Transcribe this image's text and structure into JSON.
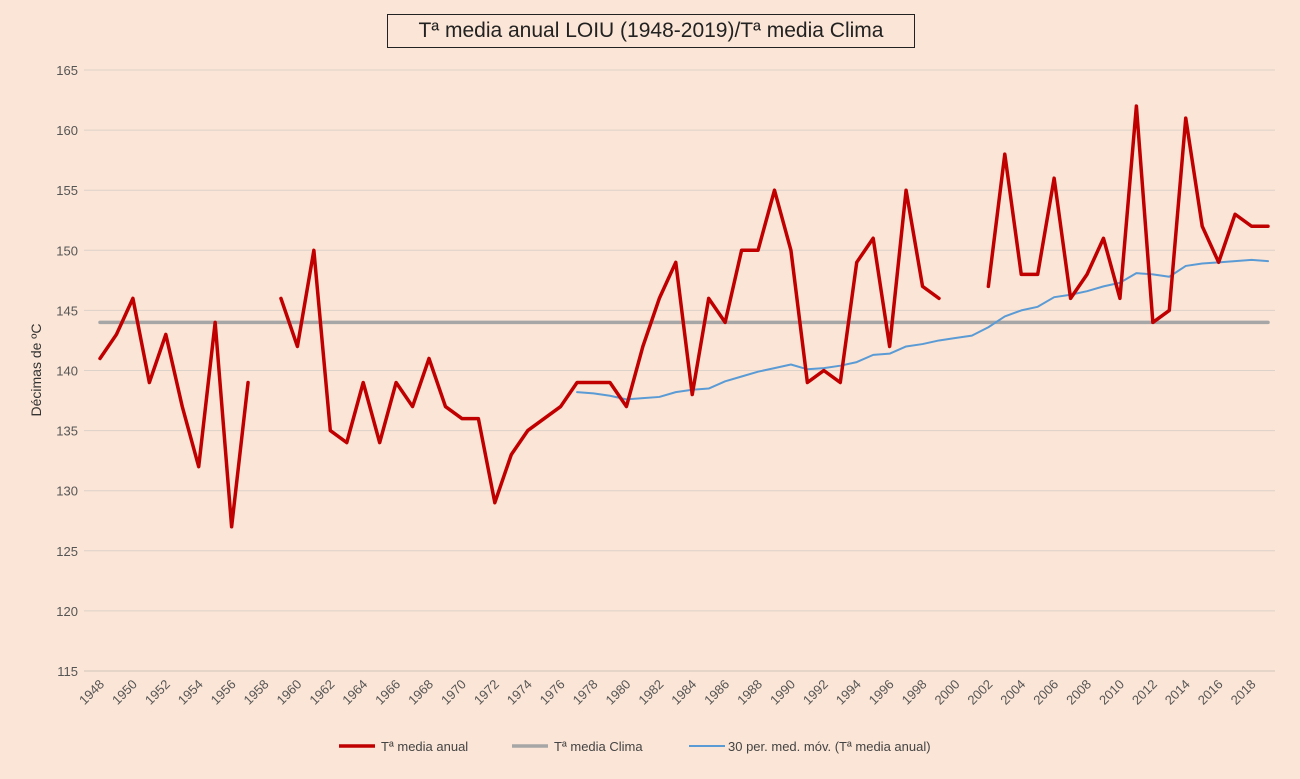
{
  "chart_data": {
    "type": "line",
    "title": "Tª media anual LOIU (1948-2019)/Tª media Clima",
    "xlabel": "",
    "ylabel": "Décimas de ºC",
    "ylim": [
      115,
      165
    ],
    "xlim": [
      1948,
      2019
    ],
    "y_ticks": [
      115,
      120,
      125,
      130,
      135,
      140,
      145,
      150,
      155,
      160,
      165
    ],
    "x_ticks": [
      1948,
      1950,
      1952,
      1954,
      1956,
      1958,
      1960,
      1962,
      1964,
      1966,
      1968,
      1970,
      1972,
      1974,
      1976,
      1978,
      1980,
      1982,
      1984,
      1986,
      1988,
      1990,
      1992,
      1994,
      1996,
      1998,
      2000,
      2002,
      2004,
      2006,
      2008,
      2010,
      2012,
      2014,
      2016,
      2018
    ],
    "grid": true,
    "legend_position": "bottom",
    "series": [
      {
        "name": "Tª media anual",
        "color": "#c00000",
        "x": [
          1948,
          1949,
          1950,
          1951,
          1952,
          1953,
          1954,
          1955,
          1956,
          1957,
          1958,
          1959,
          1960,
          1961,
          1962,
          1963,
          1964,
          1965,
          1966,
          1967,
          1968,
          1969,
          1970,
          1971,
          1972,
          1973,
          1974,
          1975,
          1976,
          1977,
          1978,
          1979,
          1980,
          1981,
          1982,
          1983,
          1984,
          1985,
          1986,
          1987,
          1988,
          1989,
          1990,
          1991,
          1992,
          1993,
          1994,
          1995,
          1996,
          1997,
          1998,
          1999,
          2000,
          2001,
          2002,
          2003,
          2004,
          2005,
          2006,
          2007,
          2008,
          2009,
          2010,
          2011,
          2012,
          2013,
          2014,
          2015,
          2016,
          2017,
          2018,
          2019
        ],
        "values": [
          141,
          143,
          146,
          139,
          143,
          137,
          132,
          144,
          127,
          139,
          null,
          146,
          142,
          150,
          135,
          134,
          139,
          134,
          139,
          137,
          141,
          137,
          136,
          136,
          129,
          133,
          135,
          136,
          137,
          139,
          139,
          139,
          137,
          142,
          146,
          149,
          138,
          146,
          144,
          150,
          150,
          155,
          150,
          139,
          140,
          139,
          149,
          151,
          142,
          155,
          147,
          146,
          null,
          null,
          147,
          158,
          148,
          148,
          156,
          146,
          148,
          151,
          146,
          162,
          144,
          145,
          161,
          152,
          149,
          153,
          152,
          152
        ]
      },
      {
        "name": "Tª media Clima",
        "color": "#a6a6a6",
        "x": [
          1948,
          2019
        ],
        "values": [
          144,
          144
        ]
      },
      {
        "name": "30 per. med. móv. (Tª media anual)",
        "color": "#5b9bd5",
        "x": [
          1977,
          1978,
          1979,
          1980,
          1981,
          1982,
          1983,
          1984,
          1985,
          1986,
          1987,
          1988,
          1989,
          1990,
          1991,
          1992,
          1993,
          1994,
          1995,
          1996,
          1997,
          1998,
          1999,
          2000,
          2001,
          2002,
          2003,
          2004,
          2005,
          2006,
          2007,
          2008,
          2009,
          2010,
          2011,
          2012,
          2013,
          2014,
          2015,
          2016,
          2017,
          2018,
          2019
        ],
        "values": [
          138.2,
          138.1,
          137.9,
          137.6,
          137.7,
          137.8,
          138.2,
          138.4,
          138.5,
          139.1,
          139.5,
          139.9,
          140.2,
          140.5,
          140.1,
          140.2,
          140.4,
          140.7,
          141.3,
          141.4,
          142.0,
          142.2,
          142.5,
          142.7,
          142.9,
          143.6,
          144.5,
          145.0,
          145.3,
          146.1,
          146.3,
          146.6,
          147.0,
          147.3,
          148.1,
          148.0,
          147.8,
          148.7,
          148.9,
          149.0,
          149.1,
          149.2,
          149.1
        ]
      }
    ]
  }
}
